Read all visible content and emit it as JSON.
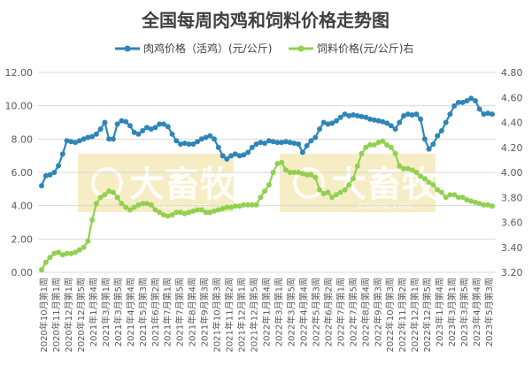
{
  "chart_data": {
    "type": "line",
    "title": "全国每周肉鸡和饲料价格走势图",
    "watermark": {
      "text": "大畜牧",
      "subtext": "dxumu.com"
    },
    "y_left": {
      "ylim": [
        0,
        12
      ],
      "ticks": [
        "0.00",
        "2.00",
        "4.00",
        "6.00",
        "8.00",
        "10.00",
        "12.00"
      ]
    },
    "y_right": {
      "ylim": [
        3.2,
        4.8
      ],
      "ticks": [
        "3.20",
        "3.40",
        "3.60",
        "3.80",
        "4.00",
        "4.20",
        "4.40",
        "4.60",
        "4.80"
      ]
    },
    "x_tick_labels": [
      "2020年10月第1周",
      "2020年11月第1周",
      "2020年12月第1周",
      "2020年12月第5周",
      "2021年1月第4周",
      "2021年3月第1周",
      "2021年3月第5周",
      "2021年4月第4周",
      "2021年5月第3周",
      "2021年6月第2周",
      "2021年7月第1周",
      "2021年7月第5周",
      "2021年8月第4周",
      "2021年9月第3周",
      "2021年10月第3周",
      "2021年11月第2周",
      "2021年12月第1周",
      "2021年12月第5周",
      "2022年1月第4周",
      "2022年3月第1周",
      "2022年3月第5周",
      "2022年4月第4周",
      "2022年5月第3周",
      "2022年6月第2周",
      "2022年7月第1周",
      "2022年7月第5周",
      "2022年8月第4周",
      "2022年9月第3周",
      "2022年10月第3周",
      "2022年11月第2周",
      "2022年12月第1周",
      "2022年12月第5周",
      "2023年1月第4周",
      "2023年3月第1周",
      "2023年3月第5周",
      "2023年4月第4周",
      "2023年5月第3周"
    ],
    "legend_position": "top-center",
    "series": [
      {
        "name": "肉鸡价格（活鸡）(元/公斤)",
        "axis": "left",
        "color": "#2e86b8",
        "values": [
          5.2,
          5.8,
          5.85,
          6.0,
          6.4,
          7.1,
          7.9,
          7.85,
          7.8,
          7.9,
          8.0,
          8.1,
          8.15,
          8.3,
          8.6,
          9.0,
          8.0,
          8.0,
          8.9,
          9.1,
          9.05,
          8.8,
          8.4,
          8.3,
          8.5,
          8.7,
          8.6,
          8.7,
          8.9,
          8.9,
          8.75,
          8.3,
          7.9,
          7.7,
          7.75,
          7.7,
          7.7,
          7.85,
          8.0,
          8.1,
          8.2,
          8.0,
          7.5,
          7.0,
          6.8,
          7.0,
          7.1,
          7.0,
          7.05,
          7.2,
          7.5,
          7.7,
          7.8,
          7.75,
          7.9,
          7.85,
          7.8,
          7.8,
          7.85,
          7.8,
          7.75,
          7.7,
          7.2,
          7.6,
          7.9,
          8.1,
          8.6,
          9.0,
          8.9,
          8.95,
          9.1,
          9.3,
          9.5,
          9.4,
          9.45,
          9.4,
          9.35,
          9.3,
          9.2,
          9.15,
          9.1,
          9.05,
          8.95,
          8.8,
          8.6,
          9.0,
          9.4,
          9.5,
          9.45,
          9.5,
          9.2,
          8.0,
          7.4,
          7.7,
          8.2,
          8.5,
          9.0,
          9.5,
          10.0,
          10.2,
          10.2,
          10.3,
          10.45,
          10.3,
          9.8,
          9.5,
          9.55,
          9.5
        ]
      },
      {
        "name": "饲料价格(元/公斤)右",
        "axis": "right",
        "color": "#92d050",
        "values": [
          3.22,
          3.28,
          3.32,
          3.35,
          3.36,
          3.34,
          3.35,
          3.35,
          3.36,
          3.38,
          3.4,
          3.45,
          3.62,
          3.75,
          3.8,
          3.82,
          3.85,
          3.84,
          3.8,
          3.75,
          3.72,
          3.7,
          3.72,
          3.74,
          3.75,
          3.75,
          3.74,
          3.7,
          3.68,
          3.66,
          3.65,
          3.66,
          3.68,
          3.68,
          3.67,
          3.68,
          3.69,
          3.7,
          3.7,
          3.68,
          3.68,
          3.69,
          3.7,
          3.71,
          3.72,
          3.72,
          3.73,
          3.73,
          3.74,
          3.74,
          3.74,
          3.74,
          3.8,
          3.85,
          3.9,
          4.0,
          4.07,
          4.08,
          4.02,
          4.0,
          4.0,
          4.0,
          3.99,
          3.98,
          3.98,
          3.96,
          3.86,
          3.83,
          3.84,
          3.8,
          3.82,
          3.84,
          3.86,
          3.9,
          3.95,
          4.05,
          4.15,
          4.2,
          4.22,
          4.22,
          4.24,
          4.25,
          4.22,
          4.2,
          4.15,
          4.05,
          4.03,
          4.03,
          4.02,
          4.0,
          3.97,
          3.95,
          3.92,
          3.9,
          3.86,
          3.84,
          3.8,
          3.82,
          3.82,
          3.8,
          3.8,
          3.78,
          3.77,
          3.76,
          3.75,
          3.74,
          3.74,
          3.73
        ]
      }
    ]
  }
}
